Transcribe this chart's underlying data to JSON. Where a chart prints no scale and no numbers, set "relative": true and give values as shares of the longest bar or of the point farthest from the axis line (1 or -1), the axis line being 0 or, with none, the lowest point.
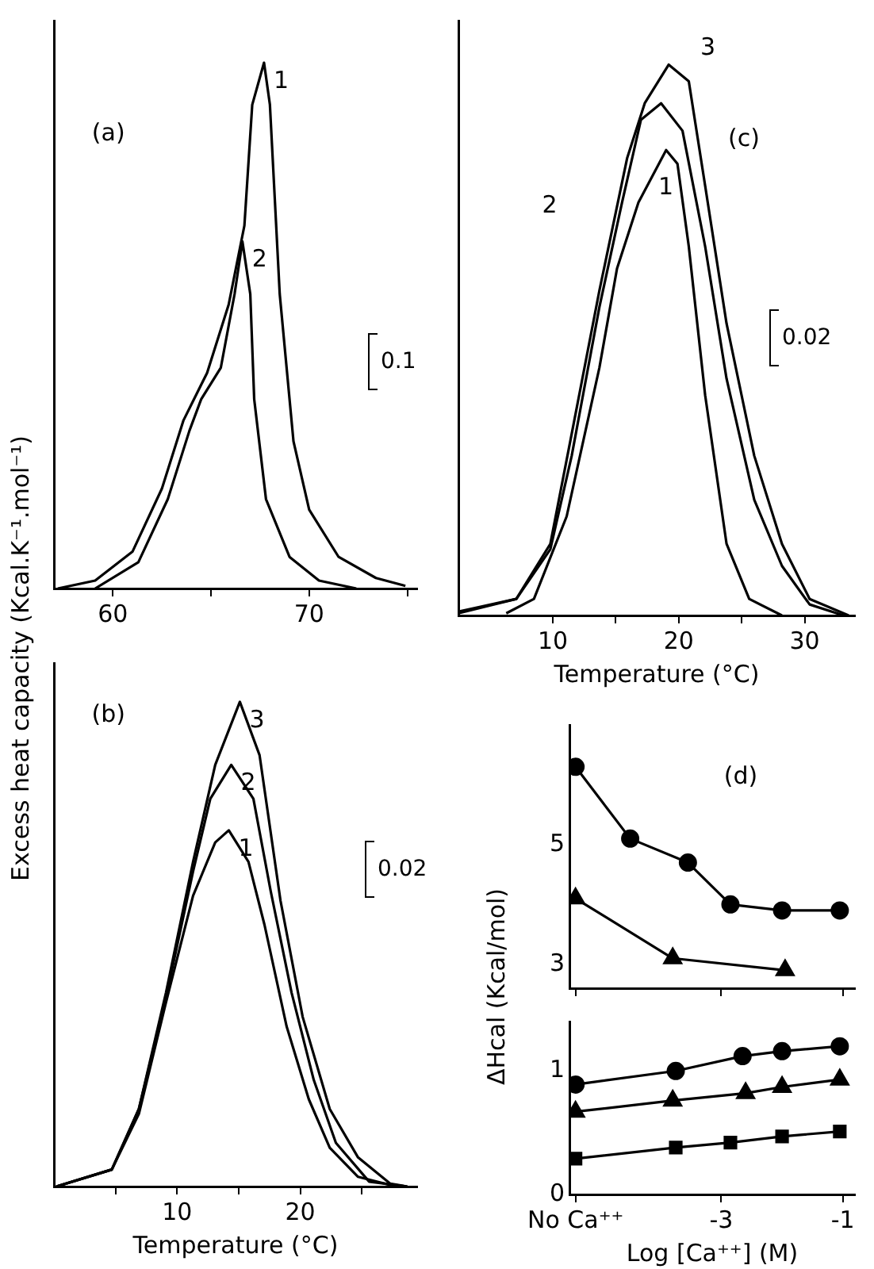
{
  "chart_data": [
    {
      "type": "line",
      "title": "(a)",
      "ylabel": "Excess heat capacity (Kcal.K⁻¹.mol⁻¹)",
      "relative": true,
      "xlim": [
        57,
        75.5
      ],
      "xticks": [
        60,
        {
          "value": 65,
          "label": null
        },
        70,
        {
          "value": 75,
          "label": null
        }
      ],
      "annotations": [
        "0.1"
      ],
      "series": [
        {
          "name": "1",
          "color": "#000000",
          "x": [
            57.2,
            59.1,
            61.0,
            62.5,
            63.6,
            64.8,
            65.9,
            66.7,
            67.1,
            67.7,
            68.0,
            68.5,
            69.2,
            70.0,
            71.5,
            73.4,
            74.9
          ],
          "values": [
            0,
            0.015,
            0.07,
            0.19,
            0.32,
            0.41,
            0.54,
            0.69,
            0.92,
            1,
            0.92,
            0.56,
            0.28,
            0.15,
            0.06,
            0.02,
            0.005
          ]
        },
        {
          "name": "2",
          "color": "#000000",
          "x": [
            59.1,
            61.3,
            62.8,
            63.9,
            64.5,
            65.5,
            66.2,
            66.6,
            67.0,
            67.2,
            67.8,
            69.0,
            70.5,
            72.4
          ],
          "values": [
            0,
            0.05,
            0.17,
            0.3,
            0.36,
            0.42,
            0.56,
            0.66,
            0.56,
            0.36,
            0.17,
            0.06,
            0.015,
            0
          ]
        }
      ]
    },
    {
      "type": "line",
      "title": "(c)",
      "xlabel": "Temperature (°C)",
      "relative": true,
      "xlim": [
        2.5,
        34
      ],
      "xticks": [
        10,
        {
          "value": 15,
          "label": null
        },
        20,
        {
          "value": 25,
          "label": null
        },
        30
      ],
      "annotations": [
        "0.02"
      ],
      "series": [
        {
          "name": "1",
          "color": "#000000",
          "x": [
            6.3,
            8.5,
            11.1,
            13.7,
            15.1,
            16.8,
            19.0,
            19.9,
            20.8,
            22.1,
            23.8,
            25.6,
            28.2
          ],
          "values": [
            0.004,
            0.03,
            0.18,
            0.45,
            0.63,
            0.75,
            0.845,
            0.82,
            0.67,
            0.4,
            0.13,
            0.03,
            0
          ]
        },
        {
          "name": "2",
          "color": "#000000",
          "x": [
            2.5,
            7.1,
            9.8,
            11.5,
            13.7,
            15.5,
            17.0,
            18.6,
            20.3,
            22.1,
            23.8,
            26.0,
            28.2,
            30.4,
            33.1
          ],
          "values": [
            0.004,
            0.03,
            0.12,
            0.29,
            0.56,
            0.75,
            0.9,
            0.93,
            0.88,
            0.67,
            0.43,
            0.21,
            0.09,
            0.02,
            0
          ]
        },
        {
          "name": "3",
          "color": "#000000",
          "x": [
            2.5,
            7.1,
            9.8,
            11.5,
            13.7,
            15.9,
            17.3,
            19.2,
            20.8,
            22.1,
            23.8,
            26.0,
            28.2,
            30.4,
            33.5
          ],
          "values": [
            0.007,
            0.03,
            0.13,
            0.33,
            0.59,
            0.83,
            0.93,
            1,
            0.97,
            0.78,
            0.53,
            0.29,
            0.13,
            0.03,
            0
          ]
        }
      ]
    },
    {
      "type": "line",
      "title": "(b)",
      "xlabel": "Temperature (°C)",
      "relative": true,
      "xlim": [
        0,
        29.5
      ],
      "xticks": [
        {
          "value": 5,
          "label": null
        },
        10,
        {
          "value": 15,
          "label": null
        },
        20,
        {
          "value": 25,
          "label": null
        }
      ],
      "annotations": [
        "0.02"
      ],
      "series": [
        {
          "name": "1",
          "color": "#000000",
          "x": [
            0.2,
            4.7,
            6.9,
            9.1,
            11.3,
            13.1,
            14.2,
            15.8,
            17.1,
            18.9,
            20.7,
            22.4,
            24.7,
            27.8
          ],
          "values": [
            0,
            0.035,
            0.15,
            0.38,
            0.6,
            0.71,
            0.735,
            0.67,
            0.54,
            0.33,
            0.18,
            0.08,
            0.02,
            0
          ]
        },
        {
          "name": "2",
          "color": "#000000",
          "x": [
            0.2,
            4.7,
            6.9,
            9.1,
            11.3,
            12.7,
            14.4,
            16.2,
            17.6,
            19.3,
            21.1,
            22.9,
            25.6,
            28.7
          ],
          "values": [
            0,
            0.035,
            0.16,
            0.39,
            0.65,
            0.8,
            0.87,
            0.8,
            0.61,
            0.4,
            0.22,
            0.09,
            0.01,
            0
          ]
        },
        {
          "name": "3",
          "color": "#000000",
          "x": [
            0.2,
            4.7,
            6.9,
            9.1,
            11.3,
            13.1,
            15.1,
            16.7,
            18.4,
            20.2,
            22.4,
            24.7,
            27.3,
            28.7
          ],
          "values": [
            0,
            0.035,
            0.16,
            0.4,
            0.67,
            0.87,
            1,
            0.89,
            0.59,
            0.35,
            0.16,
            0.06,
            0.006,
            0
          ]
        }
      ]
    },
    {
      "type": "line",
      "title": "(d)",
      "tick_labels": "y",
      "xlim": [
        -5.5,
        -0.8
      ],
      "xticks": [
        {
          "value": -5.4,
          "label": null
        },
        {
          "value": -3,
          "label": null
        },
        {
          "value": -1,
          "label": null
        }
      ],
      "ylim": [
        2.6,
        7
      ],
      "yticks": [
        3,
        5
      ],
      "series": [
        {
          "color": "#000000",
          "marker": "circle",
          "x": [
            -5.4,
            -4.5,
            -3.55,
            -2.85,
            -2,
            -1.05
          ],
          "values": [
            6.3,
            5.1,
            4.7,
            4.0,
            3.9,
            3.9
          ]
        },
        {
          "color": "#000000",
          "marker": "triangle",
          "x": [
            -5.4,
            -3.8,
            -1.95
          ],
          "values": [
            4.1,
            3.1,
            2.9
          ]
        }
      ]
    },
    {
      "type": "line",
      "xlabel": "Log [Ca⁺⁺] (M)",
      "ylabel": "ΔHcal (Kcal/mol)",
      "xlim": [
        -5.5,
        -0.8
      ],
      "ylim": [
        0,
        1.4
      ],
      "yticks": [
        0,
        1
      ],
      "xticks": [
        {
          "value": -5.4,
          "label": "No Ca⁺⁺"
        },
        -3,
        -1
      ],
      "series": [
        {
          "color": "#000000",
          "marker": "circle",
          "x": [
            -5.4,
            -3.75,
            -2.65,
            -2,
            -1.05
          ],
          "values": [
            0.89,
            1.0,
            1.12,
            1.16,
            1.2
          ]
        },
        {
          "color": "#000000",
          "marker": "triangle",
          "x": [
            -5.4,
            -3.8,
            -2.6,
            -2,
            -1.05
          ],
          "values": [
            0.67,
            0.76,
            0.82,
            0.87,
            0.93
          ]
        },
        {
          "color": "#000000",
          "marker": "square",
          "x": [
            -5.4,
            -3.75,
            -2.85,
            -2,
            -1.05
          ],
          "values": [
            0.29,
            0.38,
            0.42,
            0.47,
            0.51
          ]
        }
      ]
    }
  ]
}
